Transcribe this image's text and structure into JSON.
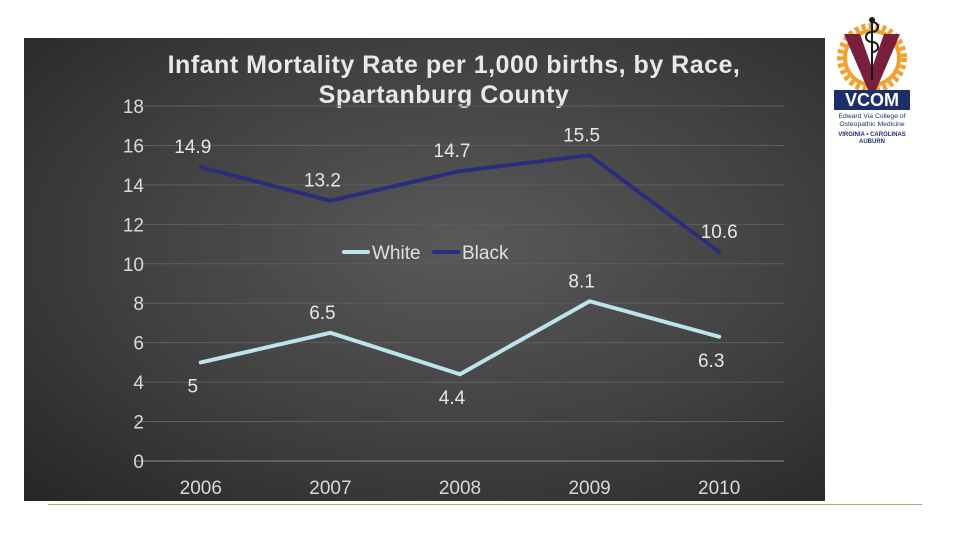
{
  "logo": {
    "wordmark": "VCOM",
    "line1": "Edward Via College of",
    "line2": "Osteopathic Medicine",
    "line3": "VIRGINIA • CAROLINAS",
    "line4": "AUBURN",
    "colors": {
      "orange": "#f4a02e",
      "maroon": "#7a1f3b",
      "navy": "#1d2f6b"
    }
  },
  "chart_data": {
    "type": "line",
    "title": "Infant Mortality Rate per 1,000 births, by Race, Spartanburg County",
    "title_lines": [
      "Infant Mortality Rate per 1,000 births, by Race,",
      "Spartanburg County"
    ],
    "categories": [
      "2006",
      "2007",
      "2008",
      "2009",
      "2010"
    ],
    "ylim": [
      0,
      18
    ],
    "yticks": [
      0,
      2,
      4,
      6,
      8,
      10,
      12,
      14,
      16,
      18
    ],
    "grid": true,
    "legend_position": "center",
    "series": [
      {
        "name": "White",
        "color": "#bde4ec",
        "values": [
          5,
          6.5,
          4.4,
          8.1,
          6.3
        ],
        "labels": [
          "5",
          "6.5",
          "4.4",
          "8.1",
          "6.3"
        ]
      },
      {
        "name": "Black",
        "color": "#2a2d7c",
        "values": [
          14.9,
          13.2,
          14.7,
          15.5,
          10.6
        ],
        "labels": [
          "14.9",
          "13.2",
          "14.7",
          "15.5",
          "10.6"
        ]
      }
    ]
  }
}
